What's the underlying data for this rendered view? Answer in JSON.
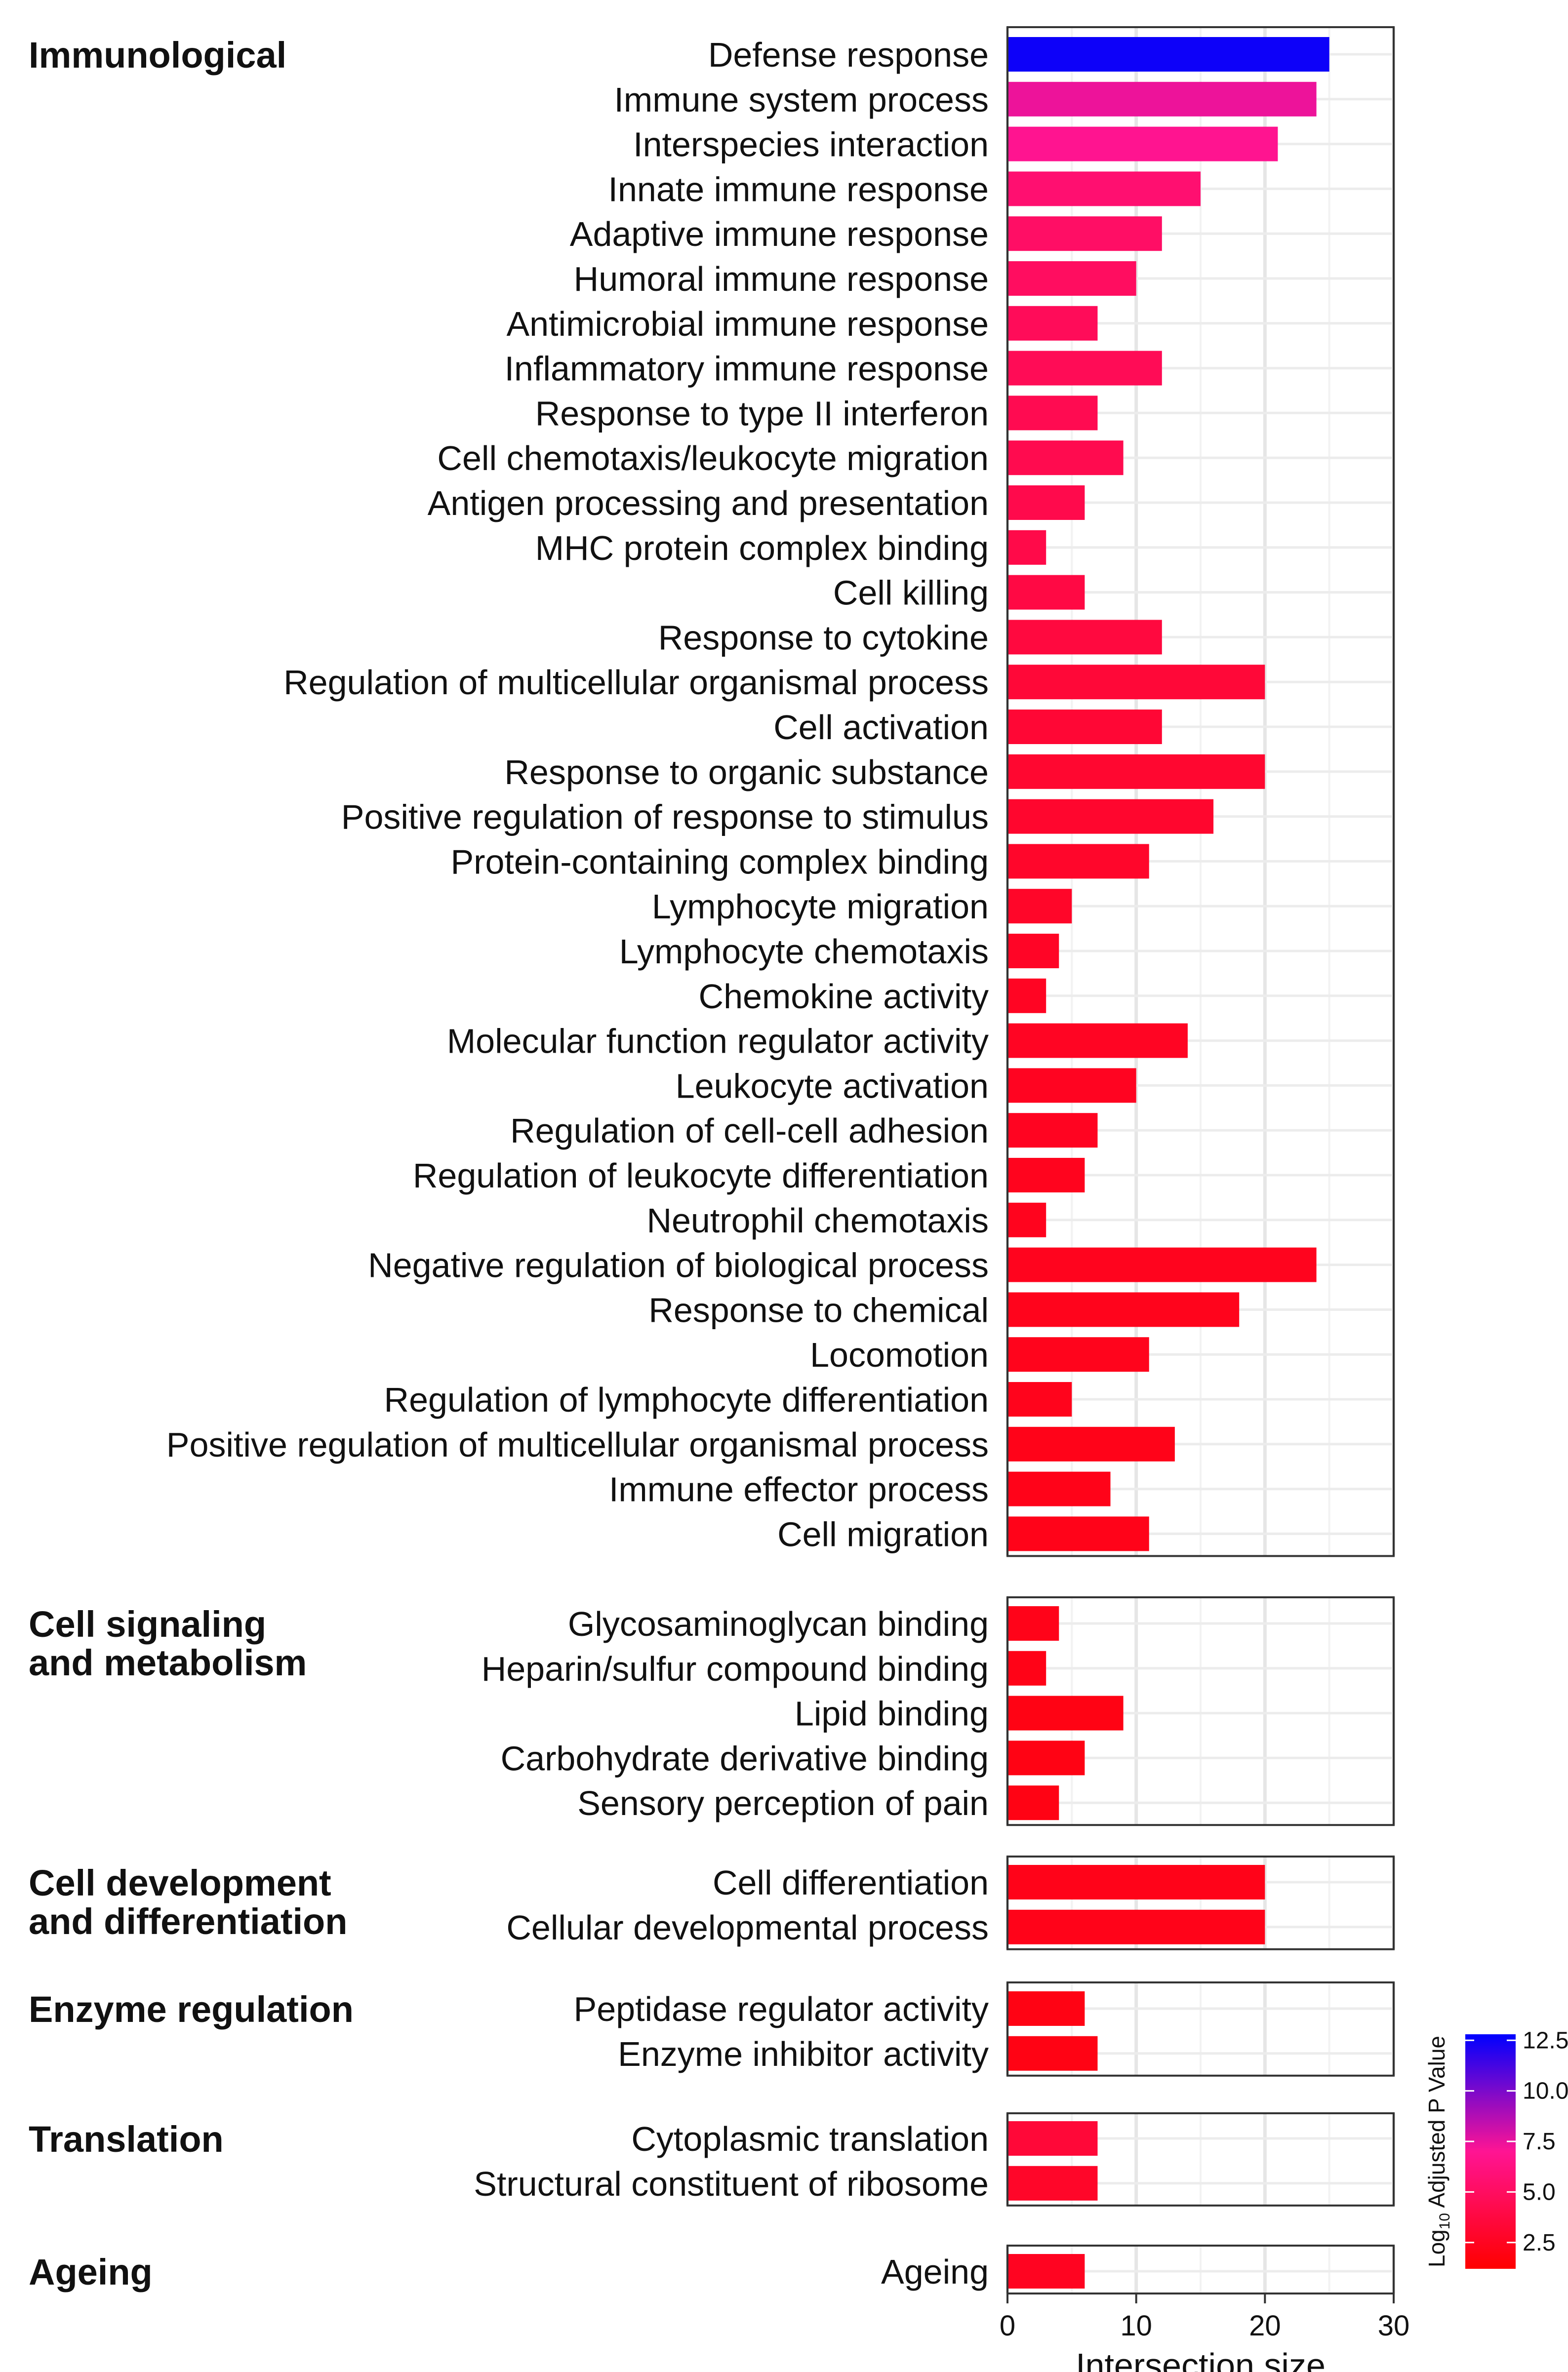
{
  "chart_data": {
    "type": "bar",
    "orientation": "horizontal",
    "xlabel": "Intersection size",
    "xlim": [
      0,
      30
    ],
    "xticks": [
      0,
      10,
      20,
      30
    ],
    "grid": true,
    "color_scale": {
      "title_prefix": "Log",
      "title_subscript": "10",
      "title_suffix": " Adjusted P Value",
      "range": [
        1.2,
        12.8
      ],
      "ticks": [
        "2.5",
        "5.0",
        "7.5",
        "10.0",
        "12.5"
      ],
      "low_color": "#ff0000",
      "mid_color": "#ff1493",
      "high_color": "#0000ff"
    },
    "groups": [
      {
        "name": "Immunological",
        "lines": [
          "Immunological"
        ],
        "terms": [
          {
            "label": "Defense response",
            "value": 25,
            "logp": 12.5
          },
          {
            "label": "Immune system process",
            "value": 24,
            "logp": 7.4
          },
          {
            "label": "Interspecies interaction",
            "value": 21,
            "logp": 6.9
          },
          {
            "label": "Innate immune response",
            "value": 15,
            "logp": 5.6
          },
          {
            "label": "Adaptive immune response",
            "value": 12,
            "logp": 5.2
          },
          {
            "label": "Humoral immune response",
            "value": 10,
            "logp": 5.0
          },
          {
            "label": "Antimicrobial immune response",
            "value": 7,
            "logp": 4.7
          },
          {
            "label": "Inflammatory immune response",
            "value": 12,
            "logp": 4.6
          },
          {
            "label": "Response to type II interferon",
            "value": 7,
            "logp": 4.4
          },
          {
            "label": "Cell chemotaxis/leukocyte migration",
            "value": 9,
            "logp": 4.3
          },
          {
            "label": "Antigen processing and presentation",
            "value": 6,
            "logp": 4.2
          },
          {
            "label": "MHC protein complex binding",
            "value": 3,
            "logp": 4.1
          },
          {
            "label": "Cell killing",
            "value": 6,
            "logp": 3.9
          },
          {
            "label": "Response to cytokine",
            "value": 12,
            "logp": 3.7
          },
          {
            "label": "Regulation of multicellular organismal process",
            "value": 20,
            "logp": 3.4
          },
          {
            "label": "Cell activation",
            "value": 12,
            "logp": 3.3
          },
          {
            "label": "Response to organic substance",
            "value": 20,
            "logp": 3.1
          },
          {
            "label": "Positive regulation of response to stimulus",
            "value": 16,
            "logp": 3.0
          },
          {
            "label": "Protein-containing complex binding",
            "value": 11,
            "logp": 2.9
          },
          {
            "label": "Lymphocyte migration",
            "value": 5,
            "logp": 2.8
          },
          {
            "label": "Lymphocyte chemotaxis",
            "value": 4,
            "logp": 2.7
          },
          {
            "label": "Chemokine activity",
            "value": 3,
            "logp": 2.6
          },
          {
            "label": "Molecular function regulator activity",
            "value": 14,
            "logp": 2.6
          },
          {
            "label": "Leukocyte activation",
            "value": 10,
            "logp": 2.5
          },
          {
            "label": "Regulation of cell-cell adhesion",
            "value": 7,
            "logp": 2.5
          },
          {
            "label": "Regulation of leukocyte differentiation",
            "value": 6,
            "logp": 2.4
          },
          {
            "label": "Neutrophil chemotaxis",
            "value": 3,
            "logp": 2.4
          },
          {
            "label": "Negative regulation of biological process",
            "value": 24,
            "logp": 2.4
          },
          {
            "label": "Response to chemical",
            "value": 18,
            "logp": 2.3
          },
          {
            "label": "Locomotion",
            "value": 11,
            "logp": 2.3
          },
          {
            "label": "Regulation of lymphocyte differentiation",
            "value": 5,
            "logp": 2.3
          },
          {
            "label": "Positive regulation of multicellular organismal process",
            "value": 13,
            "logp": 2.2
          },
          {
            "label": "Immune effector process",
            "value": 8,
            "logp": 2.2
          },
          {
            "label": "Cell migration",
            "value": 11,
            "logp": 2.2
          }
        ]
      },
      {
        "name": "Cell signaling and metabolism",
        "lines": [
          "Cell signaling",
          "and metabolism"
        ],
        "terms": [
          {
            "label": "Glycosaminoglycan binding",
            "value": 4,
            "logp": 2.2
          },
          {
            "label": "Heparin/sulfur compound binding",
            "value": 3,
            "logp": 2.1
          },
          {
            "label": "Lipid binding",
            "value": 9,
            "logp": 2.0
          },
          {
            "label": "Carbohydrate derivative binding",
            "value": 6,
            "logp": 2.0
          },
          {
            "label": "Sensory perception of pain",
            "value": 4,
            "logp": 2.0
          }
        ]
      },
      {
        "name": "Cell development and differentiation",
        "lines": [
          "Cell development",
          "and differentiation"
        ],
        "terms": [
          {
            "label": "Cell differentiation",
            "value": 20,
            "logp": 2.2
          },
          {
            "label": "Cellular developmental process",
            "value": 20,
            "logp": 2.2
          }
        ]
      },
      {
        "name": "Enzyme regulation",
        "lines": [
          "Enzyme regulation"
        ],
        "terms": [
          {
            "label": "Peptidase regulator activity",
            "value": 6,
            "logp": 2.0
          },
          {
            "label": "Enzyme inhibitor activity",
            "value": 7,
            "logp": 2.0
          }
        ]
      },
      {
        "name": "Translation",
        "lines": [
          "Translation"
        ],
        "terms": [
          {
            "label": "Cytoplasmic translation",
            "value": 7,
            "logp": 3.4
          },
          {
            "label": "Structural constituent of ribosome",
            "value": 7,
            "logp": 2.8
          }
        ]
      },
      {
        "name": "Ageing",
        "lines": [
          "Ageing"
        ],
        "terms": [
          {
            "label": "Ageing",
            "value": 6,
            "logp": 2.5
          }
        ]
      }
    ]
  }
}
